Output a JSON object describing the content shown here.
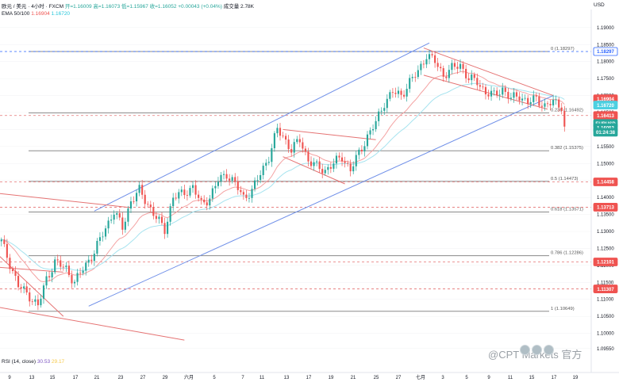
{
  "header": {
    "symbol_line": "欧元 / 美元 · 4小时 · FXCM",
    "open": "开=1.16009",
    "high": "高=1.16073",
    "low": "低=1.15967",
    "close": "收=1.16052",
    "change": "+0.00043 (+0.04%)",
    "volume": "成交量 2.78K",
    "ema_label": "EMA 50/100",
    "ema_val1": "1.16904",
    "ema_val2": "1.16720"
  },
  "rsi": {
    "label": "RSI (14, close)",
    "val1": "30.53",
    "val2": "29.17"
  },
  "currency_label": "USD",
  "watermark": "@CPT Markets 官方",
  "colors": {
    "up": "#26a69a",
    "down": "#ef5350",
    "ema50": "#f4a3a3",
    "ema100": "#a6e3ef",
    "channel": "#6f8fe8",
    "redline": "#e57373",
    "fib": "#7f7f7f",
    "dashred": "#e57373",
    "dashblue": "#2962ff"
  },
  "chart_data": {
    "type": "candlestick",
    "symbol": "EURUSD",
    "timeframe": "4h",
    "ylim": [
      1.095,
      1.193
    ],
    "y_ticks": [
      "1.19000",
      "1.18500",
      "1.18000",
      "1.17500",
      "1.17000",
      "1.16500",
      "1.16000",
      "1.15500",
      "1.15000",
      "1.14500",
      "1.14000",
      "1.13500",
      "1.13000",
      "1.12500",
      "1.12000",
      "1.11500",
      "1.11000",
      "1.10500",
      "1.10000",
      "1.09550"
    ],
    "x_ticks": [
      "9",
      "13",
      "15",
      "17",
      "21",
      "23",
      "27",
      "29",
      "六月",
      "5",
      "7",
      "11",
      "13",
      "17",
      "19",
      "21",
      "25",
      "27",
      "七月",
      "3",
      "5",
      "9",
      "11",
      "15",
      "17",
      "19"
    ],
    "anchors": [
      [
        0,
        1.127
      ],
      [
        6,
        1.114
      ],
      [
        10,
        1.111
      ],
      [
        13,
        1.108
      ],
      [
        16,
        1.116
      ],
      [
        19,
        1.121
      ],
      [
        23,
        1.119
      ],
      [
        26,
        1.115
      ],
      [
        29,
        1.119
      ],
      [
        33,
        1.124
      ],
      [
        37,
        1.131
      ],
      [
        40,
        1.136
      ],
      [
        43,
        1.131
      ],
      [
        46,
        1.139
      ],
      [
        49,
        1.142
      ],
      [
        52,
        1.138
      ],
      [
        55,
        1.134
      ],
      [
        58,
        1.1305
      ],
      [
        61,
        1.14
      ],
      [
        64,
        1.141
      ],
      [
        68,
        1.143
      ],
      [
        71,
        1.138
      ],
      [
        74,
        1.14
      ],
      [
        77,
        1.145
      ],
      [
        80,
        1.147
      ],
      [
        83,
        1.144
      ],
      [
        86,
        1.14
      ],
      [
        89,
        1.142
      ],
      [
        92,
        1.147
      ],
      [
        95,
        1.152
      ],
      [
        98,
        1.16
      ],
      [
        100,
        1.158
      ],
      [
        103,
        1.154
      ],
      [
        106,
        1.157
      ],
      [
        109,
        1.151
      ],
      [
        112,
        1.149
      ],
      [
        115,
        1.148
      ],
      [
        118,
        1.15
      ],
      [
        121,
        1.152
      ],
      [
        124,
        1.148
      ],
      [
        127,
        1.153
      ],
      [
        130,
        1.158
      ],
      [
        133,
        1.162
      ],
      [
        136,
        1.168
      ],
      [
        139,
        1.171
      ],
      [
        142,
        1.17
      ],
      [
        145,
        1.174
      ],
      [
        148,
        1.177
      ],
      [
        151,
        1.182
      ],
      [
        154,
        1.18
      ],
      [
        157,
        1.176
      ],
      [
        160,
        1.178
      ],
      [
        163,
        1.179
      ],
      [
        166,
        1.175
      ],
      [
        169,
        1.174
      ],
      [
        172,
        1.171
      ],
      [
        175,
        1.17
      ],
      [
        178,
        1.172
      ],
      [
        181,
        1.169
      ],
      [
        184,
        1.17
      ],
      [
        187,
        1.168
      ],
      [
        190,
        1.169
      ],
      [
        193,
        1.167
      ],
      [
        196,
        1.168
      ],
      [
        199,
        1.167
      ],
      [
        200,
        1.1605
      ]
    ],
    "fibonacci": [
      {
        "label": "0 (1.18297)",
        "value": 1.18297
      },
      {
        "label": "0.236 (1.16492)",
        "value": 1.16492
      },
      {
        "label": "0.382 (1.15375)",
        "value": 1.15375
      },
      {
        "label": "0.5 (1.14473)",
        "value": 1.14473
      },
      {
        "label": "0.618 (1.13571)",
        "value": 1.13571
      },
      {
        "label": "0.786 (1.12286)",
        "value": 1.12286
      },
      {
        "label": "1 (1.10649)",
        "value": 1.10649
      }
    ],
    "price_badges": [
      {
        "text": "1.18297",
        "value": 1.18297,
        "style": "blue"
      },
      {
        "text": "1.16904",
        "value": 1.16904,
        "style": "red"
      },
      {
        "text": "1.16720",
        "value": 1.1672,
        "style": "cyan"
      },
      {
        "text": "1.16413",
        "value": 1.16413,
        "style": "red"
      },
      {
        "text": "EURUSD",
        "value": 1.1618,
        "style": "green"
      },
      {
        "text": "1.16052",
        "value": 1.16052,
        "style": "green"
      },
      {
        "text": "01:24:38",
        "value": 1.1592,
        "style": "green"
      },
      {
        "text": "1.14458",
        "value": 1.14458,
        "style": "red"
      },
      {
        "text": "1.13713",
        "value": 1.13713,
        "style": "red"
      },
      {
        "text": "1.12101",
        "value": 1.12101,
        "style": "red"
      },
      {
        "text": "1.11307",
        "value": 1.11307,
        "style": "red"
      }
    ],
    "dashed_levels": [
      {
        "value": 1.18297,
        "color": "blue"
      },
      {
        "value": 1.16413,
        "color": "red"
      },
      {
        "value": 1.14458,
        "color": "red"
      },
      {
        "value": 1.13713,
        "color": "red"
      },
      {
        "value": 1.12101,
        "color": "red"
      },
      {
        "value": 1.11307,
        "color": "red"
      }
    ],
    "channel_lines": [
      [
        [
          33,
          1.136
        ],
        [
          152,
          1.1855
        ]
      ],
      [
        [
          31,
          1.108
        ],
        [
          196,
          1.17
        ]
      ]
    ],
    "red_lines": [
      [
        [
          -10,
          1.142
        ],
        [
          46,
          1.137
        ]
      ],
      [
        [
          -10,
          1.13
        ],
        [
          22,
          1.105
        ]
      ],
      [
        [
          -10,
          1.109
        ],
        [
          65,
          1.098
        ]
      ],
      [
        [
          -10,
          1.12
        ],
        [
          22,
          1.118
        ]
      ],
      [
        [
          100,
          1.16
        ],
        [
          133,
          1.157
        ]
      ],
      [
        [
          100,
          1.152
        ],
        [
          122,
          1.144
        ]
      ],
      [
        [
          150,
          1.176
        ],
        [
          194,
          1.166
        ]
      ],
      [
        [
          150,
          1.184
        ],
        [
          196,
          1.17
        ]
      ]
    ]
  }
}
